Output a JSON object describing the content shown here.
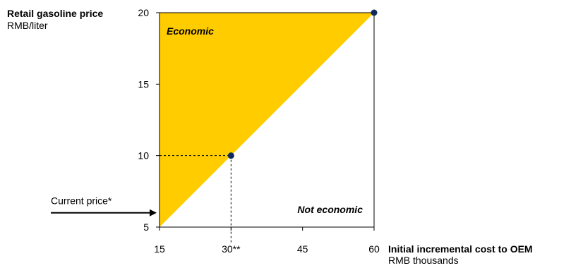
{
  "chart_data": {
    "type": "area",
    "ylabel": "Retail gasoline price",
    "yunit": "RMB/liter",
    "xlabel": "Initial incremental cost to OEM",
    "xunit": "RMB thousands",
    "xlim": [
      15,
      60
    ],
    "ylim": [
      5,
      20
    ],
    "x_ticks": [
      "15",
      "30**",
      "45",
      "60"
    ],
    "x_tick_values": [
      15,
      30,
      45,
      60
    ],
    "y_ticks": [
      "5",
      "10",
      "15",
      "20"
    ],
    "y_tick_values": [
      5,
      10,
      15,
      20
    ],
    "region_above_label": "Economic",
    "region_below_label": "Not economic",
    "breakeven_line": {
      "x": [
        15,
        60
      ],
      "y": [
        5,
        20
      ]
    },
    "points": [
      {
        "x": 30,
        "y": 10
      },
      {
        "x": 60,
        "y": 20
      }
    ],
    "current_price_label": "Current price*",
    "current_price_value": 6,
    "grid": false,
    "colors": {
      "economic_fill": "#FFCC00",
      "point": "#0F2A5C",
      "axis": "#000000"
    }
  }
}
